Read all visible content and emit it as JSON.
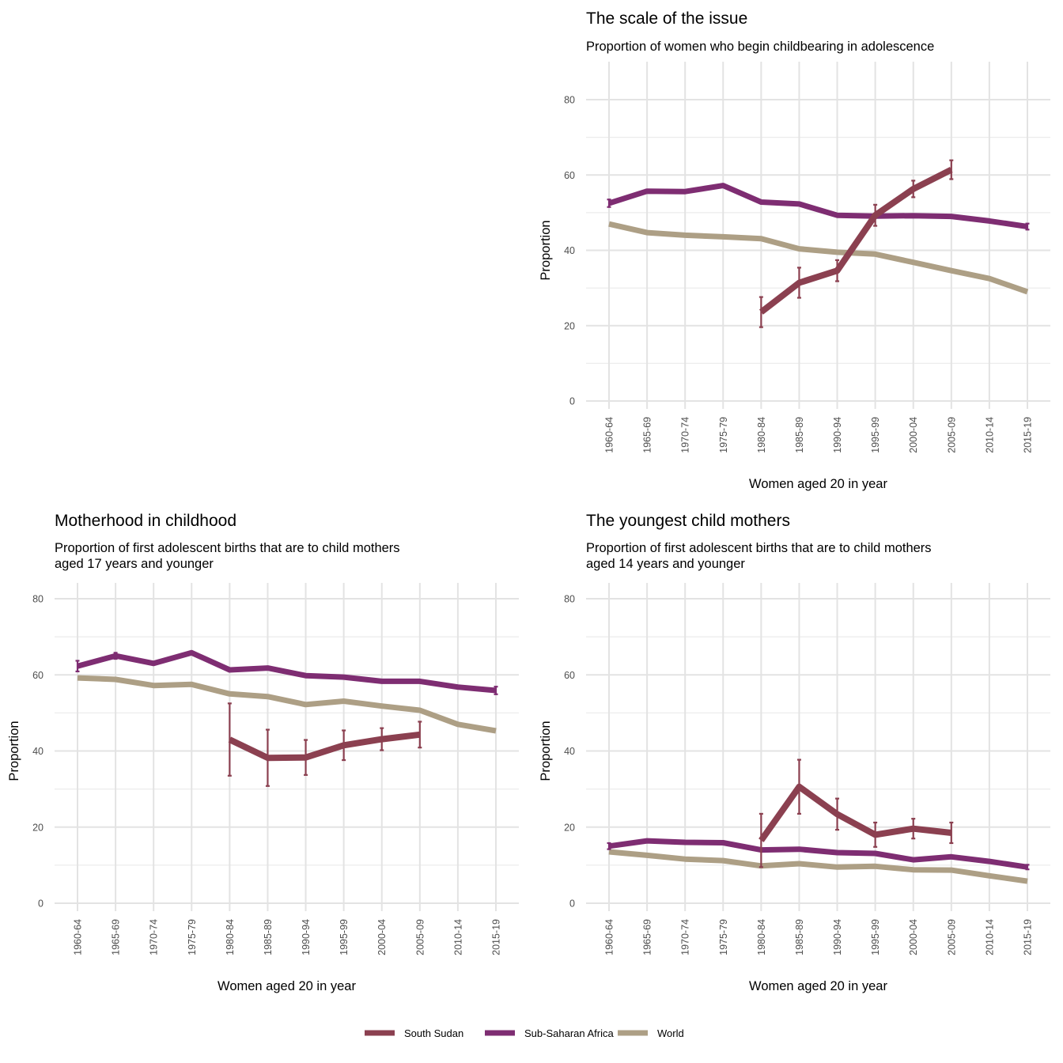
{
  "chart_data": [
    {
      "type": "line",
      "title": "The scale of the issue",
      "subtitle": [
        "Proportion of women who begin childbearing in adolescence"
      ],
      "xlabel": "Women aged 20 in year",
      "ylabel": "Proportion",
      "ylim": [
        0,
        80
      ],
      "yticks": [
        0,
        20,
        40,
        60,
        80
      ],
      "categories": [
        "1960-64",
        "1965-69",
        "1970-74",
        "1975-79",
        "1980-84",
        "1985-89",
        "1990-94",
        "1995-99",
        "2000-04",
        "2005-09",
        "2010-14",
        "2015-19"
      ],
      "grid": true,
      "series": [
        {
          "name": "World",
          "values": [
            47.0,
            44.7,
            44.0,
            43.6,
            43.1,
            40.4,
            39.5,
            39.0,
            36.8,
            34.6,
            32.5,
            29.0
          ]
        },
        {
          "name": "Sub-Saharan Africa",
          "values": [
            52.5,
            55.7,
            55.6,
            57.2,
            52.8,
            52.3,
            49.3,
            49.1,
            49.2,
            49.0,
            47.8,
            46.3
          ],
          "errors": [
            1.0,
            0.4,
            0,
            0,
            0,
            0,
            0,
            0,
            0,
            0,
            0,
            0.8
          ]
        },
        {
          "name": "South Sudan",
          "values": [
            null,
            null,
            null,
            null,
            23.6,
            31.4,
            34.6,
            49.3,
            56.3,
            61.4,
            null,
            null
          ],
          "errors": [
            null,
            null,
            null,
            null,
            4.0,
            4.0,
            2.8,
            2.8,
            2.2,
            2.5,
            null,
            null
          ]
        }
      ]
    },
    {
      "type": "line",
      "title": "Motherhood in childhood",
      "subtitle": [
        "Proportion of first adolescent births that are to child mothers",
        "aged 17 years and younger"
      ],
      "xlabel": "Women aged 20 in year",
      "ylabel": "Proportion",
      "ylim": [
        0,
        80
      ],
      "yticks": [
        0,
        20,
        40,
        60,
        80
      ],
      "categories": [
        "1960-64",
        "1965-69",
        "1970-74",
        "1975-79",
        "1980-84",
        "1985-89",
        "1990-94",
        "1995-99",
        "2000-04",
        "2005-09",
        "2010-14",
        "2015-19"
      ],
      "grid": true,
      "series": [
        {
          "name": "World",
          "values": [
            59.2,
            58.8,
            57.2,
            57.5,
            55.0,
            54.3,
            52.2,
            53.1,
            51.8,
            50.7,
            47.0,
            45.3
          ]
        },
        {
          "name": "Sub-Saharan Africa",
          "values": [
            62.3,
            65.0,
            63.0,
            65.8,
            61.3,
            61.8,
            59.8,
            59.4,
            58.3,
            58.3,
            56.8,
            55.9
          ],
          "errors": [
            1.4,
            0.8,
            0,
            0,
            0,
            0,
            0,
            0,
            0,
            0,
            0,
            1.0
          ]
        },
        {
          "name": "South Sudan",
          "values": [
            null,
            null,
            null,
            null,
            43.0,
            38.2,
            38.3,
            41.5,
            43.1,
            44.3,
            null,
            null
          ],
          "errors": [
            null,
            null,
            null,
            null,
            9.5,
            7.4,
            4.6,
            3.9,
            2.9,
            3.4,
            null,
            null
          ]
        }
      ]
    },
    {
      "type": "line",
      "title": "The youngest child mothers",
      "subtitle": [
        "Proportion of first adolescent births that are to child mothers",
        "aged 14 years and younger"
      ],
      "xlabel": "Women aged 20 in year",
      "ylabel": "Proportion",
      "ylim": [
        0,
        80
      ],
      "yticks": [
        0,
        20,
        40,
        60,
        80
      ],
      "categories": [
        "1960-64",
        "1965-69",
        "1970-74",
        "1975-79",
        "1980-84",
        "1985-89",
        "1990-94",
        "1995-99",
        "2000-04",
        "2005-09",
        "2010-14",
        "2015-19"
      ],
      "grid": true,
      "series": [
        {
          "name": "World",
          "values": [
            13.5,
            12.6,
            11.6,
            11.2,
            9.8,
            10.4,
            9.5,
            9.7,
            8.8,
            8.7,
            7.2,
            5.8
          ]
        },
        {
          "name": "Sub-Saharan Africa",
          "values": [
            15.0,
            16.4,
            16.0,
            15.9,
            14.0,
            14.2,
            13.3,
            13.1,
            11.4,
            12.2,
            11.0,
            9.5
          ],
          "errors": [
            0.8,
            0,
            0,
            0,
            0,
            0,
            0,
            0,
            0,
            0,
            0,
            0.6
          ]
        },
        {
          "name": "South Sudan",
          "values": [
            null,
            null,
            null,
            null,
            16.5,
            30.6,
            23.4,
            18.0,
            19.6,
            18.5,
            null,
            null
          ],
          "errors": [
            null,
            null,
            null,
            null,
            7.0,
            7.1,
            4.1,
            3.2,
            2.6,
            2.7,
            null,
            null
          ]
        }
      ]
    }
  ],
  "legend": {
    "position": "bottom",
    "items": [
      {
        "label": "South Sudan",
        "color": "#8b4050"
      },
      {
        "label": "Sub-Saharan Africa",
        "color": "#7e2d72"
      },
      {
        "label": "World",
        "color": "#ad9f85"
      }
    ]
  },
  "colors": {
    "South Sudan": "#8b4050",
    "Sub-Saharan Africa": "#7e2d72",
    "World": "#ad9f85"
  }
}
